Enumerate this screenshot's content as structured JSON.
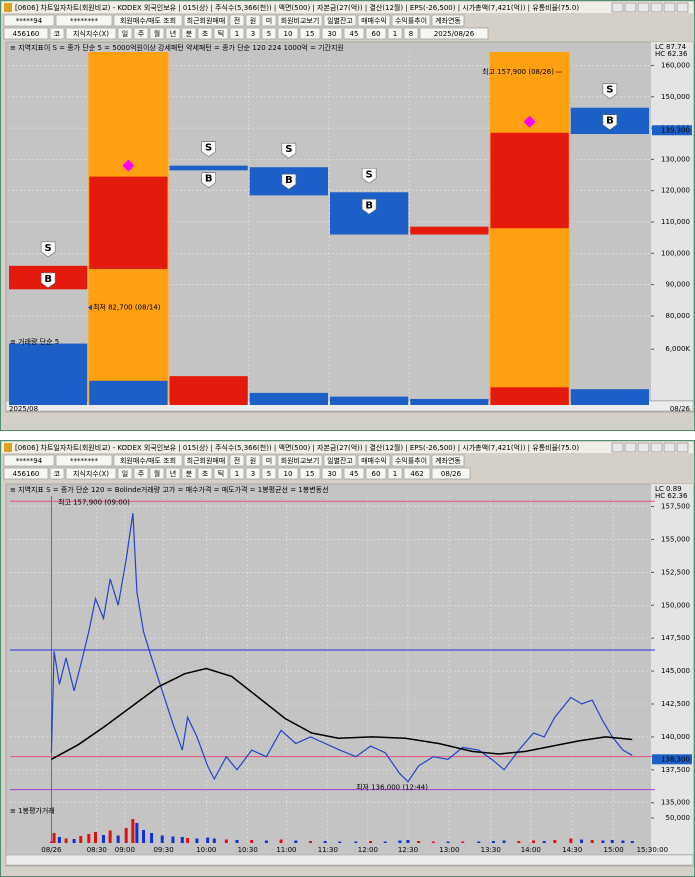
{
  "windows": [
    {
      "title": "[0606] 차트일자차트(회원비교) - KODEX 외국인보유 | 015(상) | 주식수(5,366(천)) | 액면(500) | 자본금(27(억)) | 결산(12월) | EPS(-26,500) | 시가총액(7,421(억)) | 유통비율(75.0)",
      "toolbar1": [
        "*****94",
        "********",
        "회원매수/매도 조회",
        "최근회원매매",
        "전",
        "원",
        "미",
        "회원비교보기",
        "일별잔고",
        "매매수익",
        "수익률추이",
        "계좌연동"
      ],
      "toolbar2": [
        "456160",
        "코",
        "지식지수(X)",
        "일",
        "주",
        "월",
        "년",
        "분",
        "초",
        "틱",
        "1",
        "3",
        "5",
        "10",
        "15",
        "30",
        "45",
        "60",
        "1",
        "8",
        "2025/08/26"
      ],
      "legend": "≡ 지역지표이 S = 종가 단순 5 = 5000억원이상 강세패턴 약세패턴 = 종가 단순 120 224 1000억 = 기간지원",
      "volume_legend": "≡ 거래량 단순 5",
      "axis_info": [
        "LC 87.74",
        "HC 62.36"
      ]
    },
    {
      "title": "[0606] 차트일자차트(회원비교) - KODEX 외국인보유 | 015(상) | 주식수(5,366(천)) | 액면(500) | 자본금(27(억)) | 결산(12월) | EPS(-26,500) | 시가총액(7,421(억)) | 유통비율(75.0)",
      "toolbar1": [
        "*****94",
        "********",
        "회원매수/매도 조회",
        "최근회원매매",
        "전",
        "원",
        "미",
        "회원비교보기",
        "일별잔고",
        "매매수익",
        "수익률추이",
        "계좌연동"
      ],
      "toolbar2": [
        "456160",
        "코",
        "지식지수(X)",
        "일",
        "주",
        "월",
        "년",
        "분",
        "초",
        "틱",
        "1",
        "3",
        "5",
        "10",
        "15",
        "30",
        "45",
        "60",
        "1",
        "462",
        "08/26"
      ],
      "legend": "≡ 지역지표 S = 종가 단순 120 = Bolinde거래량 고가 = 매수가격 = 매도가격 = 1봉평균선 = 1봉변동선",
      "volume_legend": "≡ 1봉평가거래",
      "axis_info": [
        "LC 0.89",
        "HC 62.36"
      ]
    }
  ],
  "chart_data": [
    {
      "type": "candlestick",
      "open": [
        88500,
        95000,
        128000,
        127500,
        119500,
        106000,
        108000,
        146500
      ],
      "close": [
        96000,
        124500,
        126500,
        118500,
        106000,
        108500,
        138500,
        138100
      ],
      "up_color": "#e41a0c",
      "down_color": "#1c5fc6",
      "highlighted": [
        false,
        true,
        false,
        false,
        false,
        false,
        true,
        false
      ],
      "highlight_color": "#ffa010",
      "diamonds": [
        false,
        true,
        false,
        false,
        false,
        false,
        true,
        false
      ],
      "diamond_color": "#ff00ff",
      "sell_signals": [
        "S",
        null,
        "S",
        "S",
        "S",
        null,
        null,
        "S"
      ],
      "buy_signals": [
        "B",
        null,
        "B",
        "B",
        "B",
        null,
        null,
        "B"
      ],
      "ylim": [
        75500,
        164300
      ],
      "yticks": [
        {
          "value": 80000,
          "label": "80,000"
        },
        {
          "value": 90000,
          "label": "90,000"
        },
        {
          "value": 100000,
          "label": "100,000"
        },
        {
          "value": 110000,
          "label": "110,000"
        },
        {
          "value": 120000,
          "label": "120,000"
        },
        {
          "value": 130000,
          "label": "130,000"
        },
        {
          "value": 140000,
          "label": "140,000"
        },
        {
          "value": 150000,
          "label": "150,000"
        },
        {
          "value": 160000,
          "label": "160,000"
        }
      ],
      "grid": true,
      "annotations": [
        {
          "label": "최고 157,900 (08/26)",
          "value": 157900
        },
        {
          "label": "최저 82,700 (08/14)",
          "value": 82700
        }
      ],
      "current_price": {
        "value": 139300,
        "label": "139,300"
      },
      "x_labels": [
        "2025/08",
        "08/26"
      ]
    },
    {
      "type": "bar",
      "values": [
        6600,
        2600,
        3100,
        1300,
        900,
        650,
        1900,
        1700
      ],
      "colors": [
        "#1c5fc6",
        "#1c5fc6",
        "#e41a0c",
        "#1c5fc6",
        "#1c5fc6",
        "#1c5fc6",
        "#e41a0c",
        "#1c5fc6"
      ],
      "ylim": [
        0,
        7200
      ],
      "yticks": [
        {
          "value": 6000,
          "label": "6,000K"
        }
      ]
    },
    {
      "type": "line",
      "series": [
        {
          "color": "#2244c8",
          "x": [
            0,
            2,
            6,
            11,
            17,
            22,
            28,
            33,
            39,
            44,
            50,
            56,
            61,
            64,
            69,
            75,
            83,
            91,
            98,
            102,
            109,
            117,
            122,
            131,
            139,
            150,
            161,
            172,
            183,
            194,
            205,
            216,
            228,
            239,
            250,
            261,
            267,
            275,
            286,
            297,
            308,
            320,
            331,
            339,
            350,
            361,
            369,
            377,
            389,
            397,
            405,
            413,
            420,
            428,
            435
          ],
          "values": [
            138800,
            146500,
            144000,
            146000,
            143500,
            145500,
            148000,
            150500,
            149000,
            152000,
            150000,
            153500,
            157000,
            151000,
            148000,
            146000,
            143500,
            141000,
            139000,
            141500,
            140000,
            137800,
            136800,
            138500,
            137500,
            139000,
            138500,
            140500,
            139500,
            140000,
            139500,
            139000,
            138500,
            139300,
            138800,
            137200,
            136600,
            137800,
            138500,
            138300,
            139200,
            139000,
            138200,
            137500,
            139000,
            140300,
            140000,
            141500,
            143000,
            142500,
            142800,
            141200,
            140000,
            139000,
            138600
          ]
        },
        {
          "color": "#000000",
          "x": [
            0,
            20,
            40,
            60,
            80,
            100,
            116,
            135,
            155,
            175,
            195,
            215,
            240,
            265,
            290,
            315,
            335,
            355,
            375,
            395,
            415,
            435
          ],
          "values": [
            138300,
            139400,
            140800,
            142300,
            143800,
            144800,
            145200,
            144600,
            143000,
            141400,
            140300,
            139900,
            140000,
            139900,
            139500,
            138900,
            138700,
            138900,
            139300,
            139700,
            140000,
            139800
          ]
        }
      ],
      "reference_lines": [
        {
          "value": 157900,
          "color": "#e8507a"
        },
        {
          "value": 146600,
          "color": "#2030e0"
        },
        {
          "value": 138500,
          "color": "#e8507a"
        },
        {
          "value": 136000,
          "color": "#a040d0"
        }
      ],
      "xlim": [
        -31,
        452
      ],
      "xticks": [
        {
          "value": 0,
          "label": "08/26"
        },
        {
          "value": 34,
          "label": "08:30"
        },
        {
          "value": 55,
          "label": "09:00"
        },
        {
          "value": 84,
          "label": "09:30"
        },
        {
          "value": 116,
          "label": "10:00"
        },
        {
          "value": 147,
          "label": "10:30"
        },
        {
          "value": 176,
          "label": "11:00"
        },
        {
          "value": 207,
          "label": "11:30"
        },
        {
          "value": 237,
          "label": "12:00"
        },
        {
          "value": 267,
          "label": "12:30"
        },
        {
          "value": 298,
          "label": "13:00"
        },
        {
          "value": 329,
          "label": "13:30"
        },
        {
          "value": 359,
          "label": "14:00"
        },
        {
          "value": 390,
          "label": "14:30"
        },
        {
          "value": 421,
          "label": "15:00"
        },
        {
          "value": 450,
          "label": "15:30:00"
        }
      ],
      "ylim": [
        134600,
        158300
      ],
      "yticks": [
        {
          "value": 135000,
          "label": "135,000"
        },
        {
          "value": 137500,
          "label": "137,500"
        },
        {
          "value": 140000,
          "label": "140,000"
        },
        {
          "value": 142500,
          "label": "142,500"
        },
        {
          "value": 145000,
          "label": "145,000"
        },
        {
          "value": 147500,
          "label": "147,500"
        },
        {
          "value": 150000,
          "label": "150,000"
        },
        {
          "value": 152500,
          "label": "152,500"
        },
        {
          "value": 155000,
          "label": "155,000"
        },
        {
          "value": 157500,
          "label": "157,500"
        }
      ],
      "grid": true,
      "annotations": [
        {
          "label": "최고 157,900 (09:00)",
          "value": 157900
        },
        {
          "label": "최저 136,000 (12:44)",
          "value": 136000
        }
      ],
      "current_price": {
        "value": 138300,
        "label": "138,300"
      }
    },
    {
      "type": "bar",
      "x": [
        0,
        2,
        6,
        11,
        17,
        22,
        28,
        33,
        39,
        44,
        50,
        56,
        61,
        64,
        69,
        75,
        83,
        91,
        98,
        102,
        109,
        117,
        122,
        131,
        139,
        150,
        161,
        172,
        183,
        194,
        205,
        216,
        228,
        239,
        250,
        261,
        267,
        275,
        286,
        297,
        308,
        320,
        331,
        339,
        350,
        361,
        369,
        377,
        389,
        397,
        405,
        413,
        420,
        428,
        435
      ],
      "values": [
        3000,
        20000,
        12000,
        9000,
        8000,
        14000,
        18000,
        22000,
        16000,
        25000,
        15000,
        30000,
        48000,
        40000,
        26000,
        20000,
        15000,
        13000,
        12000,
        10000,
        9000,
        11000,
        9000,
        7000,
        6000,
        6000,
        5000,
        7000,
        5000,
        4000,
        4000,
        3000,
        3000,
        4000,
        3000,
        5000,
        6000,
        4000,
        3000,
        3000,
        3000,
        3000,
        4000,
        5000,
        4000,
        5000,
        4000,
        6000,
        9000,
        7000,
        6000,
        5000,
        6000,
        5000,
        4000
      ],
      "colors": [
        "#e01010",
        "#e01010",
        "#1030d0",
        "#e01010",
        "#1030d0",
        "#e01010",
        "#e01010",
        "#e01010",
        "#1030d0",
        "#e01010",
        "#1030d0",
        "#e01010",
        "#e01010",
        "#1030d0",
        "#1030d0",
        "#1030d0",
        "#1030d0",
        "#1030d0",
        "#1030d0",
        "#e01010",
        "#1030d0",
        "#1030d0",
        "#1030d0",
        "#e01010",
        "#1030d0",
        "#e01010",
        "#1030d0",
        "#e01010",
        "#1030d0",
        "#e01010",
        "#1030d0",
        "#1030d0",
        "#1030d0",
        "#e01010",
        "#1030d0",
        "#1030d0",
        "#1030d0",
        "#e01010",
        "#e01010",
        "#1030d0",
        "#e01010",
        "#1030d0",
        "#1030d0",
        "#1030d0",
        "#e01010",
        "#e01010",
        "#1030d0",
        "#e01010",
        "#e01010",
        "#1030d0",
        "#e01010",
        "#1030d0",
        "#1030d0",
        "#1030d0",
        "#1030d0"
      ],
      "xlim": [
        -31,
        452
      ],
      "ylim": [
        0,
        56000
      ],
      "yticks": [
        {
          "value": 50000,
          "label": "50,000"
        }
      ]
    }
  ]
}
